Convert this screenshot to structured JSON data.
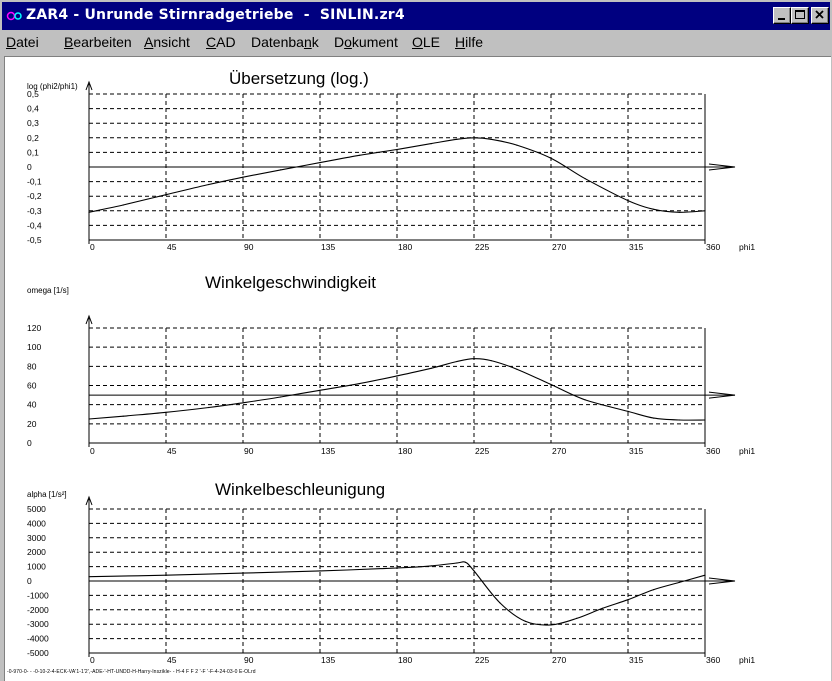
{
  "window": {
    "title": "ZAR4 - Unrunde Stirnradgetriebe  -  SINLIN.zr4"
  },
  "menu": [
    {
      "label": "Datei"
    },
    {
      "label": "Bearbeiten"
    },
    {
      "label": "Ansicht"
    },
    {
      "label": "CAD"
    },
    {
      "label": "Datenbank"
    },
    {
      "label": "Dokument"
    },
    {
      "label": "OLE"
    },
    {
      "label": "Hilfe"
    }
  ],
  "footer_text": "-0-970-0- - -0-10-2-4-ECK-VA'1-1'2',-ADE-'-HT-UNDD-H-Harry-Inszikle- - H-4 F F 2 '-F '-F-4-24-03-0 E-OLrd",
  "chart_data": [
    {
      "type": "line",
      "title": "Übersetzung (log.)",
      "ylabel": "log (phi2/phi1)",
      "xlabel": "phi1",
      "xlim": [
        0,
        360
      ],
      "ylim": [
        -0.5,
        0.5
      ],
      "xticks": [
        "0",
        "45",
        "90",
        "135",
        "180",
        "225",
        "270",
        "315",
        "360"
      ],
      "yticks": [
        "0,5",
        "0,4",
        "0,3",
        "0,2",
        "0,1",
        "0",
        "-0,1",
        "-0,2",
        "-0,3",
        "-0,4",
        "-0,5"
      ],
      "grid": true,
      "reference_line": 0,
      "series": [
        {
          "x": [
            0,
            20,
            45,
            70,
            90,
            112,
            135,
            158,
            180,
            200,
            215,
            225,
            235,
            250,
            270,
            290,
            315,
            330,
            345,
            360
          ],
          "y": [
            -0.31,
            -0.26,
            -0.19,
            -0.12,
            -0.07,
            -0.02,
            0.03,
            0.08,
            0.12,
            0.16,
            0.19,
            0.2,
            0.19,
            0.15,
            0.06,
            -0.08,
            -0.23,
            -0.29,
            -0.31,
            -0.3
          ]
        }
      ]
    },
    {
      "type": "line",
      "title": "Winkelgeschwindigkeit",
      "ylabel": "omega [1/s]",
      "xlabel": "phi1",
      "xlim": [
        0,
        360
      ],
      "ylim": [
        0,
        120
      ],
      "xticks": [
        "0",
        "45",
        "90",
        "135",
        "180",
        "225",
        "270",
        "315",
        "360"
      ],
      "yticks": [
        "120",
        "100",
        "80",
        "60",
        "40",
        "20",
        "0"
      ],
      "grid": true,
      "reference_line": 50,
      "series": [
        {
          "x": [
            0,
            20,
            45,
            70,
            90,
            112,
            135,
            158,
            180,
            200,
            215,
            225,
            235,
            250,
            270,
            290,
            315,
            330,
            345,
            360
          ],
          "y": [
            25,
            28,
            32,
            37,
            42,
            48,
            55,
            62,
            70,
            78,
            85,
            88,
            86,
            77,
            61,
            45,
            33,
            26,
            24,
            24
          ]
        }
      ]
    },
    {
      "type": "line",
      "title": "Winkelbeschleunigung",
      "ylabel": "alpha [1/s²]",
      "xlabel": "phi1",
      "xlim": [
        0,
        360
      ],
      "ylim": [
        -5000,
        5000
      ],
      "xticks": [
        "0",
        "45",
        "90",
        "135",
        "180",
        "225",
        "270",
        "315",
        "360"
      ],
      "yticks": [
        "5000",
        "4000",
        "3000",
        "2000",
        "1000",
        "0",
        "-1000",
        "-2000",
        "-3000",
        "-4000",
        "-5000"
      ],
      "grid": true,
      "reference_line": 0,
      "series": [
        {
          "x": [
            0,
            45,
            90,
            135,
            180,
            200,
            215,
            220,
            225,
            240,
            255,
            270,
            285,
            300,
            315,
            330,
            345,
            360
          ],
          "y": [
            300,
            400,
            550,
            700,
            900,
            1050,
            1250,
            1300,
            700,
            -1500,
            -2800,
            -3050,
            -2600,
            -1900,
            -1300,
            -600,
            -100,
            400
          ]
        }
      ]
    }
  ]
}
